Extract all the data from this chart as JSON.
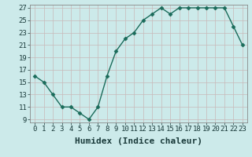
{
  "x": [
    0,
    1,
    2,
    3,
    4,
    5,
    6,
    7,
    8,
    9,
    10,
    11,
    12,
    13,
    14,
    15,
    16,
    17,
    18,
    19,
    20,
    21,
    22,
    23
  ],
  "y": [
    16,
    15,
    13,
    11,
    11,
    10,
    9,
    11,
    16,
    20,
    22,
    23,
    25,
    26,
    27,
    26,
    27,
    27,
    27,
    27,
    27,
    27,
    24,
    21
  ],
  "xlabel": "Humidex (Indice chaleur)",
  "xlim": [
    -0.5,
    23.5
  ],
  "ylim": [
    8.5,
    27.5
  ],
  "yticks": [
    9,
    11,
    13,
    15,
    17,
    19,
    21,
    23,
    25,
    27
  ],
  "xticks": [
    0,
    1,
    2,
    3,
    4,
    5,
    6,
    7,
    8,
    9,
    10,
    11,
    12,
    13,
    14,
    15,
    16,
    17,
    18,
    19,
    20,
    21,
    22,
    23
  ],
  "line_color": "#1a6b5a",
  "marker": "D",
  "marker_size": 2.5,
  "bg_color": "#cceaea",
  "grid_color": "#c8b8b8",
  "xlabel_fontsize": 8,
  "tick_fontsize": 6.5,
  "lw": 1.0
}
